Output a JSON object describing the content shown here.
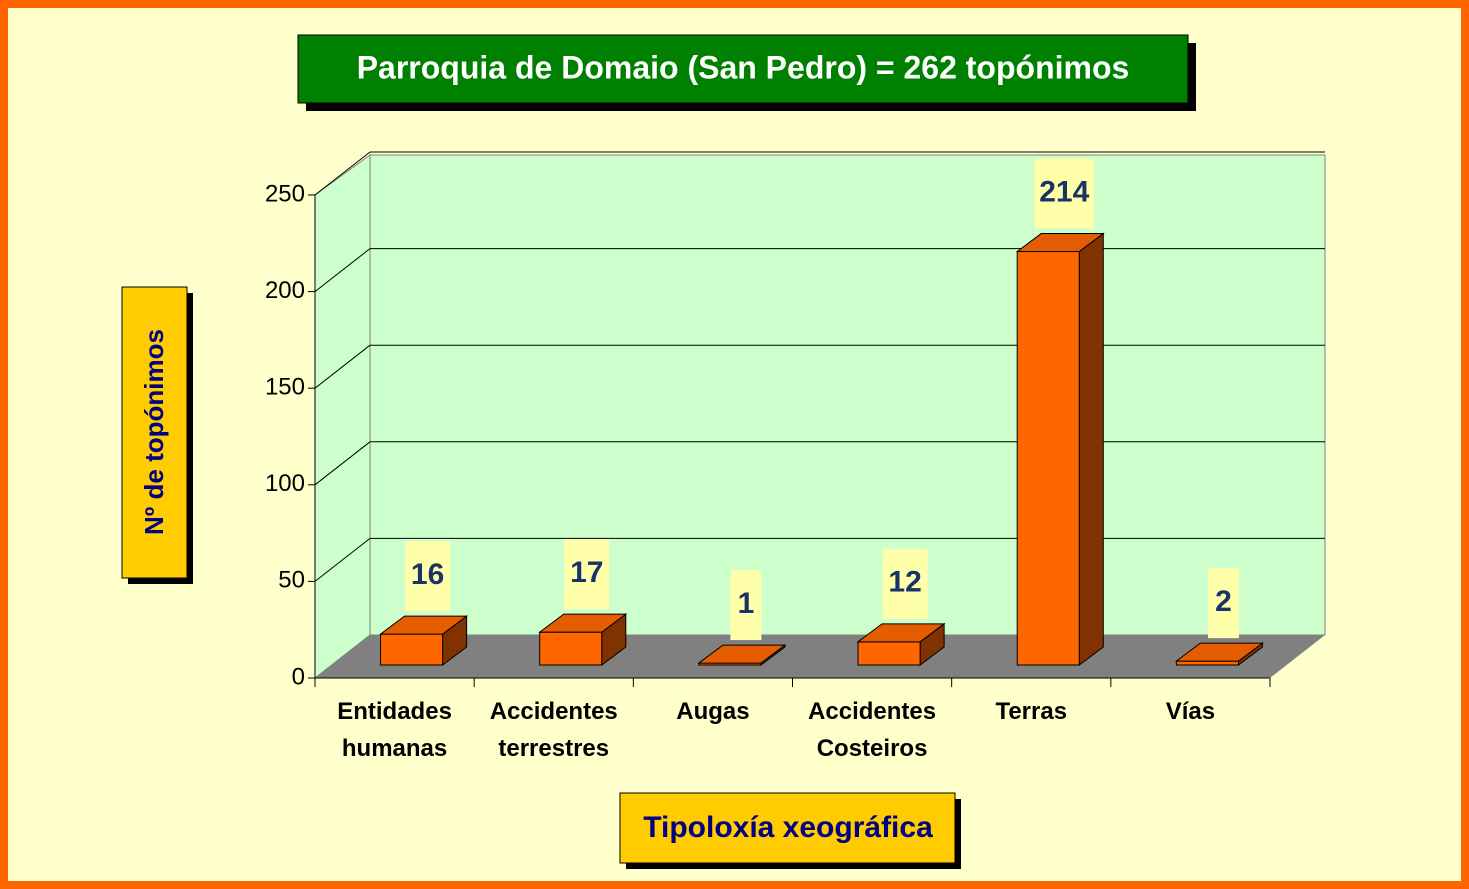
{
  "chart_data": {
    "type": "bar3d",
    "title": "Parroquia de Domaio (San Pedro) = 262 topónimos",
    "y_label": "Nº de topónimos",
    "x_label": "Tipoloxía xeográfica",
    "categories": [
      "Entidades humanas",
      "Accidentes terrestres",
      "Augas",
      "Accidentes Costeiros",
      "Terras",
      "Vías"
    ],
    "values": [
      16,
      17,
      1,
      12,
      214,
      2
    ],
    "color": "#ff6600",
    "ylim": [
      0,
      250
    ],
    "yticks": [
      0,
      50,
      100,
      150,
      200,
      250
    ],
    "grid": true
  }
}
